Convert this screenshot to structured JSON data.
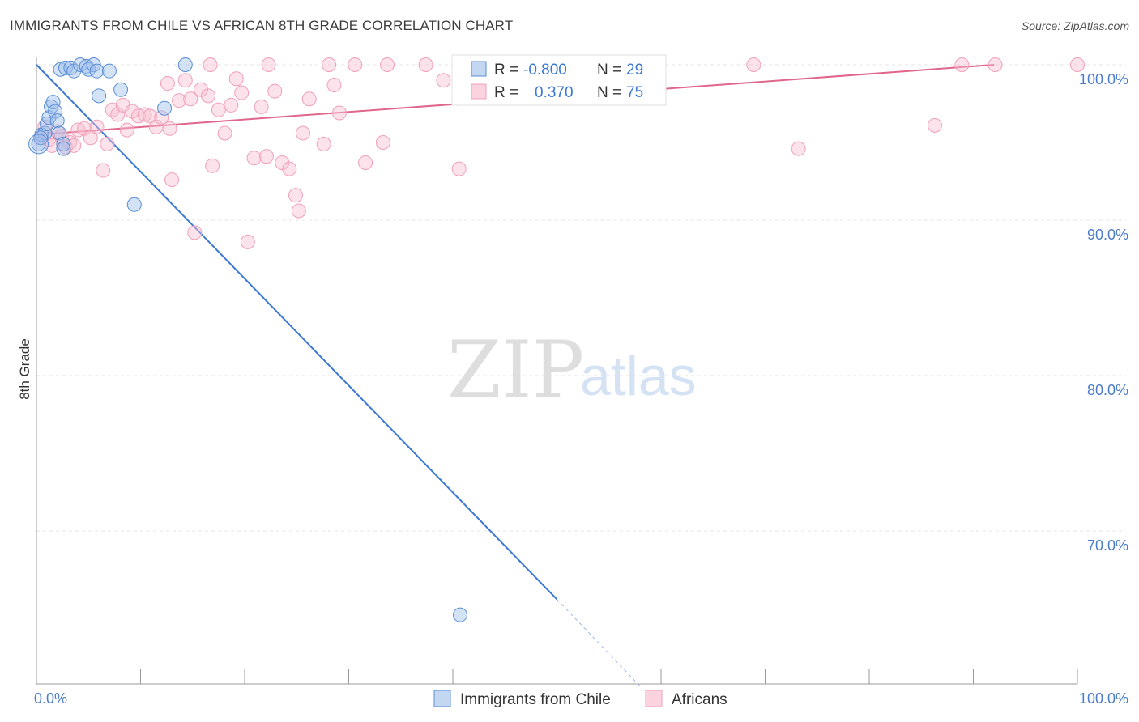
{
  "title": "IMMIGRANTS FROM CHILE VS AFRICAN 8TH GRADE CORRELATION CHART",
  "source": "Source: ZipAtlas.com",
  "watermark": {
    "zip": "ZIP",
    "atlas": "atlas"
  },
  "colors": {
    "blue": "#5b8fd6",
    "blue_line": "#3a78d4",
    "pink": "#f0a0b8",
    "pink_line": "#e0668c",
    "tick": "#4a7cc9"
  },
  "legend_stats": [
    {
      "r_label": "R =",
      "r_value": "-0.800",
      "n_label": "N =",
      "n_value": "29"
    },
    {
      "r_label": "R =",
      "r_value": "0.370",
      "n_label": "N =",
      "n_value": "75"
    }
  ],
  "chart_data": {
    "type": "scatter",
    "title": "IMMIGRANTS FROM CHILE VS AFRICAN 8TH GRADE CORRELATION CHART",
    "xlabel": "",
    "ylabel": "8th Grade",
    "xlim": [
      0,
      100
    ],
    "ylim": [
      60,
      100
    ],
    "x_ticks": [
      0,
      10,
      20,
      30,
      40,
      50,
      60,
      70,
      80,
      90,
      100
    ],
    "x_tick_labels": [
      "0.0%",
      "",
      "",
      "",
      "",
      "",
      "",
      "",
      "",
      "",
      "100.0%"
    ],
    "y_ticks": [
      100,
      90,
      80,
      70
    ],
    "y_tick_labels": [
      "100.0%",
      "90.0%",
      "80.0%",
      "70.0%"
    ],
    "grid": true,
    "legend_position": "bottom",
    "series": [
      {
        "name": "Immigrants from Chile",
        "color": "#5b8fd6",
        "r": -0.8,
        "n": 29,
        "trend": {
          "x": [
            0,
            50
          ],
          "y": [
            100,
            65.6
          ],
          "dashed_to": [
            58,
            60
          ]
        },
        "points": [
          [
            0.2,
            94.9
          ],
          [
            0.5,
            95.5
          ],
          [
            0.8,
            95.6
          ],
          [
            1.0,
            96.2
          ],
          [
            1.2,
            96.6
          ],
          [
            1.4,
            97.3
          ],
          [
            1.6,
            97.6
          ],
          [
            1.8,
            97.0
          ],
          [
            2.0,
            96.4
          ],
          [
            2.2,
            95.6
          ],
          [
            2.6,
            94.9
          ],
          [
            2.6,
            94.6
          ],
          [
            2.3,
            99.7
          ],
          [
            2.8,
            99.8
          ],
          [
            3.3,
            99.8
          ],
          [
            3.6,
            99.6
          ],
          [
            4.2,
            100
          ],
          [
            4.8,
            99.9
          ],
          [
            5.0,
            99.7
          ],
          [
            5.5,
            100
          ],
          [
            5.8,
            99.6
          ],
          [
            6.0,
            98.0
          ],
          [
            7.0,
            99.6
          ],
          [
            8.1,
            98.4
          ],
          [
            9.4,
            91.0
          ],
          [
            12.3,
            97.2
          ],
          [
            14.3,
            100
          ],
          [
            0.4,
            95.3
          ],
          [
            40.7,
            64.6
          ]
        ]
      },
      {
        "name": "Africans",
        "color": "#f0a0b8",
        "r": 0.37,
        "n": 75,
        "trend": {
          "x": [
            0,
            92
          ],
          "y": [
            95.5,
            100
          ]
        },
        "points": [
          [
            0.5,
            95.3
          ],
          [
            0.8,
            96.0
          ],
          [
            1.2,
            95.2
          ],
          [
            1.5,
            94.8
          ],
          [
            2.0,
            95.7
          ],
          [
            2.4,
            95.4
          ],
          [
            2.8,
            94.7
          ],
          [
            3.2,
            95.0
          ],
          [
            3.6,
            94.8
          ],
          [
            4.0,
            95.8
          ],
          [
            4.6,
            95.9
          ],
          [
            5.2,
            95.3
          ],
          [
            5.8,
            96.0
          ],
          [
            6.4,
            93.2
          ],
          [
            6.8,
            94.9
          ],
          [
            7.3,
            97.1
          ],
          [
            7.8,
            96.8
          ],
          [
            8.3,
            97.4
          ],
          [
            8.7,
            95.8
          ],
          [
            9.2,
            97.0
          ],
          [
            9.8,
            96.7
          ],
          [
            10.4,
            96.8
          ],
          [
            10.9,
            96.7
          ],
          [
            11.5,
            96.0
          ],
          [
            12.0,
            96.6
          ],
          [
            12.6,
            98.8
          ],
          [
            13.0,
            92.6
          ],
          [
            13.7,
            97.7
          ],
          [
            14.3,
            99.0
          ],
          [
            14.8,
            97.8
          ],
          [
            15.2,
            89.2
          ],
          [
            15.8,
            98.4
          ],
          [
            16.5,
            98.0
          ],
          [
            16.9,
            93.5
          ],
          [
            17.5,
            97.1
          ],
          [
            18.1,
            95.6
          ],
          [
            18.7,
            97.4
          ],
          [
            19.2,
            99.1
          ],
          [
            19.7,
            98.2
          ],
          [
            20.3,
            88.6
          ],
          [
            20.9,
            94.0
          ],
          [
            21.6,
            97.3
          ],
          [
            22.1,
            94.1
          ],
          [
            22.9,
            98.3
          ],
          [
            23.6,
            93.7
          ],
          [
            24.3,
            93.3
          ],
          [
            24.9,
            91.6
          ],
          [
            25.2,
            90.6
          ],
          [
            25.6,
            95.6
          ],
          [
            26.2,
            97.8
          ],
          [
            16.7,
            100
          ],
          [
            22.3,
            100
          ],
          [
            27.6,
            94.9
          ],
          [
            28.1,
            100
          ],
          [
            28.6,
            98.7
          ],
          [
            29.1,
            96.9
          ],
          [
            30.6,
            100
          ],
          [
            31.6,
            93.7
          ],
          [
            33.3,
            95.0
          ],
          [
            33.7,
            100
          ],
          [
            37.4,
            100
          ],
          [
            40.6,
            93.3
          ],
          [
            44.3,
            100
          ],
          [
            47.6,
            99.8
          ],
          [
            51.0,
            99.4
          ],
          [
            54.8,
            99.1
          ],
          [
            59.7,
            100
          ],
          [
            68.9,
            100
          ],
          [
            73.2,
            94.6
          ],
          [
            86.3,
            96.1
          ],
          [
            88.9,
            100
          ],
          [
            92.1,
            100
          ],
          [
            100,
            100
          ],
          [
            39.1,
            99.0
          ],
          [
            12.8,
            95.9
          ]
        ]
      }
    ]
  },
  "legend": [
    {
      "label": "Immigrants from Chile",
      "color": "#5b8fd6"
    },
    {
      "label": "Africans",
      "color": "#f0a0b8"
    }
  ]
}
